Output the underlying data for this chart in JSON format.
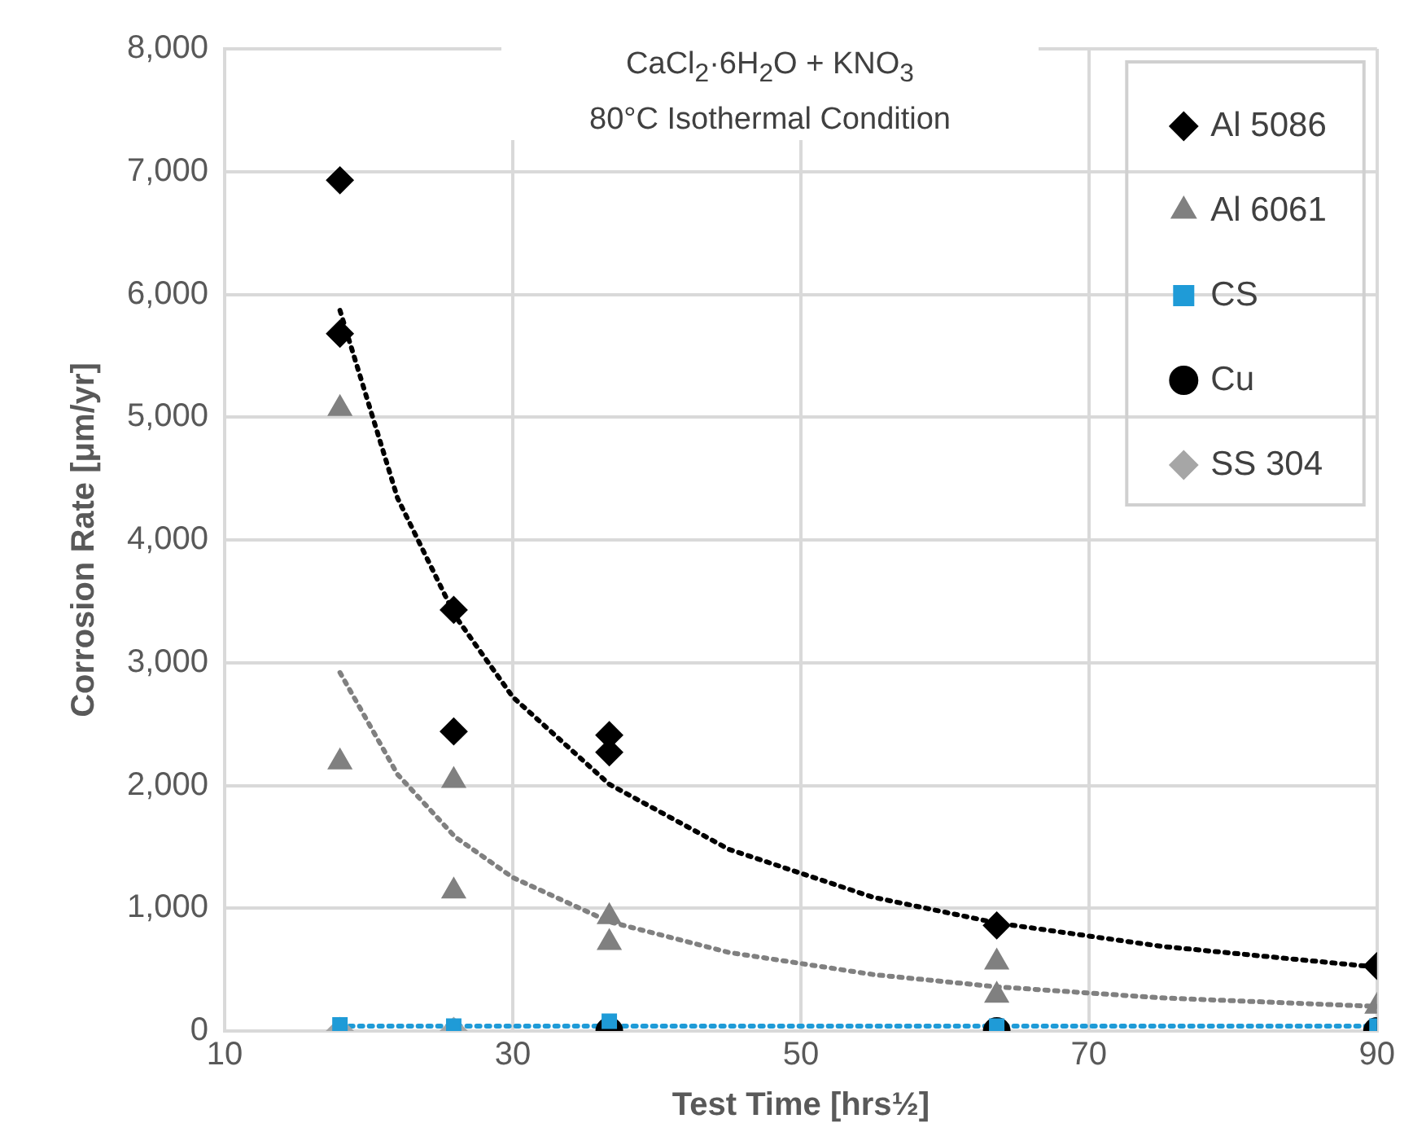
{
  "chart_data": {
    "type": "scatter",
    "xlabel": "Test Time [hrs½]",
    "ylabel": "Corrosion Rate [μm/yr]",
    "annotations": [
      "CaCl$_{2}$·6H$_{2}$O + KNO$_{3}$",
      "80°C Isothermal Condition"
    ],
    "xlim": [
      10,
      90
    ],
    "xticks": [
      10,
      30,
      50,
      70,
      90
    ],
    "ylim": [
      0,
      8000
    ],
    "yticks": [
      0,
      {
        "value": 1000,
        "label": "1,000"
      },
      {
        "value": 2000,
        "label": "2,000"
      },
      {
        "value": 3000,
        "label": "3,000"
      },
      {
        "value": 4000,
        "label": "4,000"
      },
      {
        "value": 5000,
        "label": "5,000"
      },
      {
        "value": 6000,
        "label": "6,000"
      },
      {
        "value": 7000,
        "label": "7,000"
      },
      {
        "value": 8000,
        "label": "8,000"
      }
    ],
    "grid": true,
    "legend": "top right",
    "series": [
      {
        "type": "line",
        "color": "#000000",
        "line_style": "dotted",
        "marker": "none",
        "x": [
          18,
          22,
          26,
          30,
          36.7,
          45,
          55,
          63.6,
          75,
          90
        ],
        "values": [
          5870,
          4340,
          3380,
          2720,
          2010,
          1480,
          1090,
          880,
          690,
          520
        ]
      },
      {
        "type": "line",
        "color": "#808080",
        "line_style": "dotted",
        "marker": "none",
        "x": [
          18,
          22,
          26,
          30,
          36.7,
          45,
          55,
          63.6,
          75,
          90
        ],
        "values": [
          2920,
          2090,
          1580,
          1250,
          890,
          640,
          460,
          360,
          270,
          200
        ]
      },
      {
        "type": "line",
        "color": "#1f9bd7",
        "line_style": "dotted",
        "marker": "none",
        "x": [
          18,
          90
        ],
        "values": [
          40,
          40
        ]
      },
      {
        "name": "Al 5086",
        "color": "#000000",
        "marker": "diamond",
        "x": [
          18,
          18,
          25.9,
          25.9,
          36.7,
          36.7,
          63.6,
          90
        ],
        "values": [
          6930,
          5680,
          3430,
          2440,
          2410,
          2270,
          860,
          530
        ]
      },
      {
        "name": "Al 6061",
        "color": "#808080",
        "marker": "triangle",
        "x": [
          18,
          18,
          25.9,
          25.9,
          36.7,
          36.7,
          63.6,
          63.6,
          90
        ],
        "values": [
          5070,
          2190,
          2040,
          1140,
          930,
          720,
          560,
          290,
          200
        ]
      },
      {
        "name": "CS",
        "color": "#1f9bd7",
        "marker": "square",
        "x": [
          18,
          25.9,
          36.7,
          63.6,
          90
        ],
        "values": [
          50,
          40,
          80,
          40,
          40
        ]
      },
      {
        "name": "Cu",
        "color": "#000000",
        "marker": "circle",
        "x": [
          36.7,
          63.6,
          90
        ],
        "values": [
          0,
          0,
          0
        ]
      },
      {
        "name": "SS 304",
        "color": "#a6a6a6",
        "marker": "diamond",
        "x": [
          18,
          25.9
        ],
        "values": [
          0,
          0
        ]
      }
    ]
  }
}
